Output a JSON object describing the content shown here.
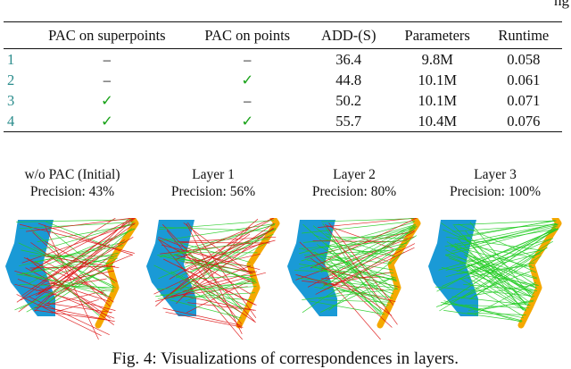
{
  "cut_text": "ng",
  "table": {
    "headers": [
      "",
      "PAC on superpoints",
      "PAC on points",
      "ADD-(S)",
      "Parameters",
      "Runtime"
    ],
    "rows": [
      {
        "id": "1",
        "superpoints": "–",
        "points": "–",
        "add_s": "36.4",
        "params": "9.8M",
        "runtime": "0.058"
      },
      {
        "id": "2",
        "superpoints": "–",
        "points": "✓",
        "add_s": "44.8",
        "params": "10.1M",
        "runtime": "0.061"
      },
      {
        "id": "3",
        "superpoints": "✓",
        "points": "–",
        "add_s": "50.2",
        "params": "10.1M",
        "runtime": "0.071"
      },
      {
        "id": "4",
        "superpoints": "✓",
        "points": "✓",
        "add_s": "55.7",
        "params": "10.4M",
        "runtime": "0.076"
      }
    ]
  },
  "panels": [
    {
      "title": "w/o PAC (Initial)",
      "precision": "Precision:  43%",
      "precision_value": 0.43
    },
    {
      "title": "Layer 1",
      "precision": "Precision:  56%",
      "precision_value": 0.56
    },
    {
      "title": "Layer 2",
      "precision": "Precision:  80%",
      "precision_value": 0.8
    },
    {
      "title": "Layer 3",
      "precision": "Precision:  100%",
      "precision_value": 1.0
    }
  ],
  "colors": {
    "source_shape": "#1a9ad6",
    "target_shape": "#f5a800",
    "correct_match": "#22cc22",
    "wrong_match": "#dd1111",
    "row_index": "#2a8c8c",
    "checkmark": "#1aa31a"
  },
  "caption": "Fig. 4: Visualizations of correspondences in layers."
}
